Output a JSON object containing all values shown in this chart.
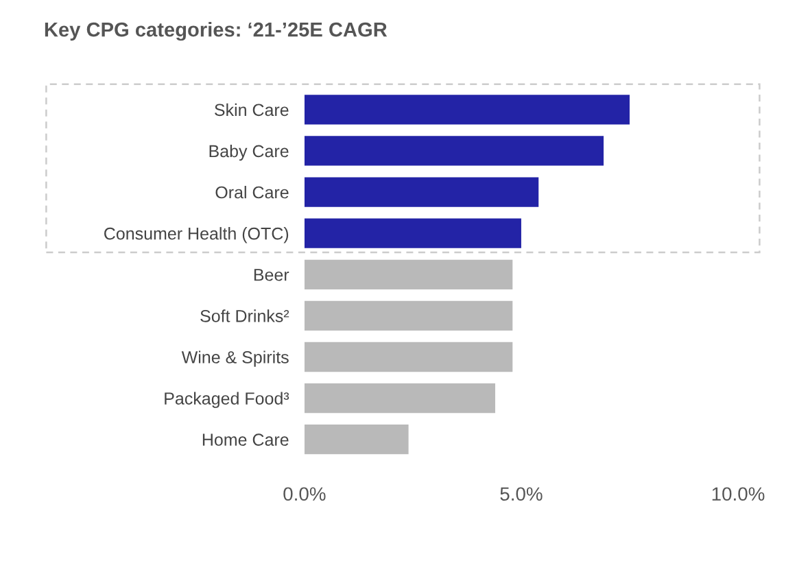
{
  "chart_data": {
    "type": "bar",
    "orientation": "horizontal",
    "title": "Key CPG categories: ‘21-’25E CAGR",
    "categories": [
      "Skin Care",
      "Baby Care",
      "Oral Care",
      "Consumer Health (OTC)",
      "Beer",
      "Soft Drinks²",
      "Wine & Spirits",
      "Packaged Food³",
      "Home Care"
    ],
    "values": [
      7.5,
      6.9,
      5.4,
      5.0,
      4.8,
      4.8,
      4.8,
      4.4,
      2.4
    ],
    "colors": [
      "#2323a6",
      "#2323a6",
      "#2323a6",
      "#2323a6",
      "#b9b9b9",
      "#b9b9b9",
      "#b9b9b9",
      "#b9b9b9",
      "#b9b9b9"
    ],
    "xlim": [
      0,
      10
    ],
    "xticks": [
      {
        "value": 0,
        "label": "0.0%"
      },
      {
        "value": 5,
        "label": "5.0%"
      },
      {
        "value": 10,
        "label": "10.0%"
      }
    ],
    "grid": false
  }
}
